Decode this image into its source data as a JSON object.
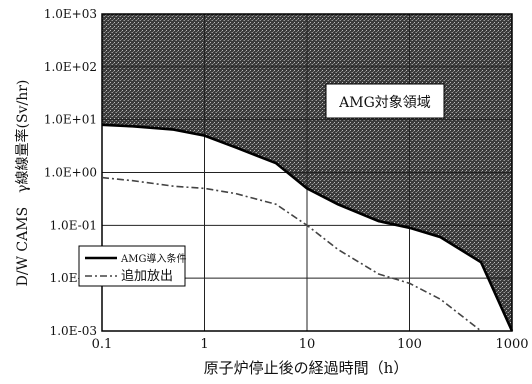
{
  "chart_data": {
    "type": "line",
    "xscale": "log",
    "yscale": "log",
    "xlim": [
      0.1,
      1000
    ],
    "ylim": [
      0.001,
      1000
    ],
    "xticks": [
      0.1,
      1,
      10,
      100,
      1000
    ],
    "xtick_labels": [
      "0.1",
      "1",
      "10",
      "100",
      "1000"
    ],
    "yticks": [
      0.001,
      0.01,
      0.1,
      1,
      10,
      100,
      1000
    ],
    "ytick_labels": [
      "1.0E-03",
      "1.0E-02",
      "1.0E-01",
      "1.0E+00",
      "1.0E+01",
      "1.0E+02",
      "1.0E+03"
    ],
    "xlabel": "原子炉停止後の経過時間（h）",
    "ylabel": "D/W CAMS　γ線線量率(Sv/hr)",
    "grid": true,
    "legend_position": "lower-left",
    "region_label": "AMG対象領域",
    "series": [
      {
        "name": "AMG導入条件",
        "style": "solid",
        "color": "#000000",
        "x": [
          0.1,
          0.2,
          0.5,
          1,
          2,
          5,
          10,
          20,
          50,
          100,
          200,
          500,
          1000
        ],
        "y": [
          8,
          7.5,
          6.5,
          5,
          3,
          1.5,
          0.5,
          0.25,
          0.12,
          0.09,
          0.06,
          0.02,
          0.001
        ]
      },
      {
        "name": "追加放出",
        "style": "dash-dot",
        "color": "#444444",
        "x": [
          0.1,
          0.2,
          0.5,
          1,
          2,
          5,
          10,
          20,
          50,
          100,
          200,
          500
        ],
        "y": [
          0.8,
          0.7,
          0.55,
          0.5,
          0.4,
          0.25,
          0.1,
          0.035,
          0.012,
          0.008,
          0.004,
          0.001
        ]
      }
    ]
  }
}
